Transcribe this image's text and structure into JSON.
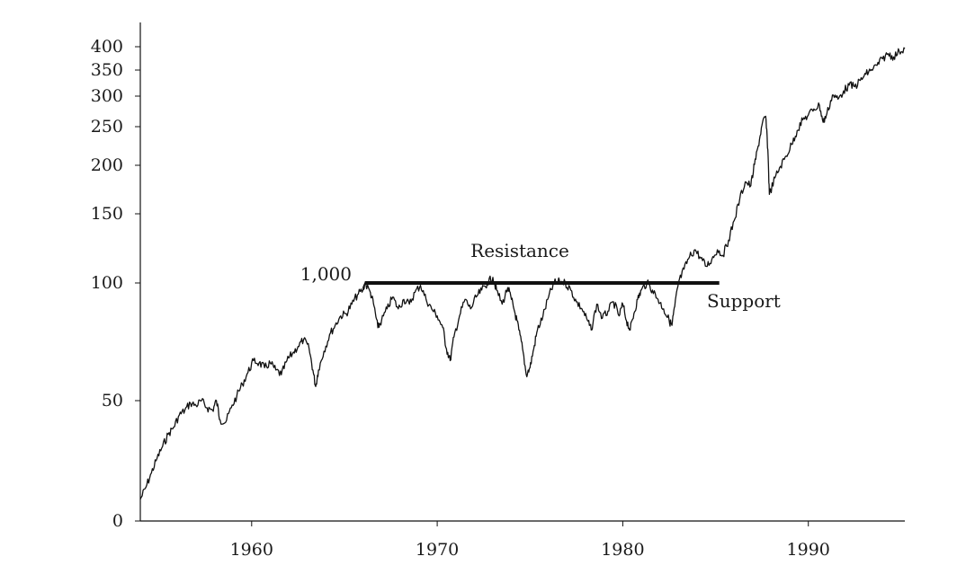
{
  "chart_data": {
    "type": "line",
    "title": "",
    "xlabel": "",
    "ylabel": "",
    "xlim": [
      1954.0,
      1995.2
    ],
    "ylim": [
      0,
      400
    ],
    "y_scale": "custom-compressed (nonlinear; tick labels 0, 50, 100 … 400)",
    "grid": false,
    "legend": "none",
    "x_ticks": [
      1960,
      1970,
      1980,
      1990
    ],
    "y_ticks": [
      0,
      50,
      100,
      150,
      200,
      250,
      300,
      350,
      400
    ],
    "x_tick_labels": [
      "1960",
      "1970",
      "1980",
      "1990"
    ],
    "y_tick_labels": [
      "0",
      "50",
      "100",
      "150",
      "200",
      "250",
      "300",
      "350",
      "400"
    ],
    "line_color": "#111111",
    "series": [
      {
        "points": [
          [
            1954.0,
            9
          ],
          [
            1954.3,
            14
          ],
          [
            1954.6,
            20
          ],
          [
            1954.9,
            26
          ],
          [
            1955.2,
            31
          ],
          [
            1955.5,
            36
          ],
          [
            1955.8,
            39
          ],
          [
            1956.1,
            44
          ],
          [
            1956.4,
            46
          ],
          [
            1956.7,
            49
          ],
          [
            1957.0,
            48
          ],
          [
            1957.3,
            50
          ],
          [
            1957.6,
            47
          ],
          [
            1957.9,
            46
          ],
          [
            1958.1,
            50
          ],
          [
            1958.3,
            42
          ],
          [
            1958.6,
            41
          ],
          [
            1958.9,
            47
          ],
          [
            1959.2,
            52
          ],
          [
            1959.5,
            57
          ],
          [
            1959.8,
            62
          ],
          [
            1960.1,
            67
          ],
          [
            1960.4,
            66
          ],
          [
            1960.7,
            64
          ],
          [
            1961.0,
            66
          ],
          [
            1961.3,
            63
          ],
          [
            1961.6,
            61
          ],
          [
            1961.9,
            67
          ],
          [
            1962.2,
            70
          ],
          [
            1962.5,
            73
          ],
          [
            1962.8,
            76
          ],
          [
            1963.1,
            72
          ],
          [
            1963.3,
            63
          ],
          [
            1963.45,
            56
          ],
          [
            1963.6,
            63
          ],
          [
            1963.9,
            71
          ],
          [
            1964.2,
            78
          ],
          [
            1964.5,
            82
          ],
          [
            1964.8,
            86
          ],
          [
            1965.1,
            87
          ],
          [
            1965.4,
            91
          ],
          [
            1965.7,
            95
          ],
          [
            1966.0,
            97
          ],
          [
            1966.1,
            100
          ],
          [
            1966.4,
            96
          ],
          [
            1966.6,
            90
          ],
          [
            1966.8,
            81
          ],
          [
            1967.0,
            84
          ],
          [
            1967.3,
            89
          ],
          [
            1967.6,
            94
          ],
          [
            1967.9,
            89
          ],
          [
            1968.2,
            93
          ],
          [
            1968.5,
            91
          ],
          [
            1968.8,
            96
          ],
          [
            1969.1,
            99
          ],
          [
            1969.4,
            93
          ],
          [
            1969.7,
            89
          ],
          [
            1970.0,
            86
          ],
          [
            1970.3,
            81
          ],
          [
            1970.5,
            72
          ],
          [
            1970.7,
            67
          ],
          [
            1970.9,
            77
          ],
          [
            1971.2,
            86
          ],
          [
            1971.5,
            93
          ],
          [
            1971.8,
            89
          ],
          [
            1972.1,
            94
          ],
          [
            1972.4,
            97
          ],
          [
            1972.7,
            100
          ],
          [
            1973.0,
            104
          ],
          [
            1973.2,
            97
          ],
          [
            1973.5,
            91
          ],
          [
            1973.8,
            98
          ],
          [
            1974.0,
            93
          ],
          [
            1974.2,
            87
          ],
          [
            1974.4,
            80
          ],
          [
            1974.6,
            72
          ],
          [
            1974.8,
            61
          ],
          [
            1975.0,
            64
          ],
          [
            1975.2,
            72
          ],
          [
            1975.4,
            80
          ],
          [
            1975.7,
            86
          ],
          [
            1976.0,
            94
          ],
          [
            1976.3,
            100
          ],
          [
            1976.6,
            101
          ],
          [
            1976.9,
            100
          ],
          [
            1977.2,
            97
          ],
          [
            1977.5,
            92
          ],
          [
            1977.8,
            89
          ],
          [
            1978.1,
            84
          ],
          [
            1978.3,
            80
          ],
          [
            1978.6,
            91
          ],
          [
            1978.9,
            85
          ],
          [
            1979.2,
            88
          ],
          [
            1979.5,
            92
          ],
          [
            1979.8,
            86
          ],
          [
            1980.0,
            91
          ],
          [
            1980.2,
            84
          ],
          [
            1980.4,
            80
          ],
          [
            1980.6,
            87
          ],
          [
            1980.8,
            93
          ],
          [
            1981.0,
            97
          ],
          [
            1981.3,
            100
          ],
          [
            1981.6,
            97
          ],
          [
            1981.9,
            93
          ],
          [
            1982.2,
            89
          ],
          [
            1982.5,
            84
          ],
          [
            1982.65,
            82
          ],
          [
            1982.8,
            90
          ],
          [
            1983.0,
            100
          ],
          [
            1983.3,
            110
          ],
          [
            1983.6,
            119
          ],
          [
            1983.9,
            124
          ],
          [
            1984.2,
            118
          ],
          [
            1984.5,
            112
          ],
          [
            1984.8,
            117
          ],
          [
            1985.1,
            124
          ],
          [
            1985.4,
            120
          ],
          [
            1985.7,
            131
          ],
          [
            1986.0,
            145
          ],
          [
            1986.3,
            165
          ],
          [
            1986.6,
            183
          ],
          [
            1986.9,
            179
          ],
          [
            1987.1,
            201
          ],
          [
            1987.3,
            225
          ],
          [
            1987.5,
            252
          ],
          [
            1987.7,
            267
          ],
          [
            1987.82,
            220
          ],
          [
            1987.9,
            170
          ],
          [
            1988.2,
            187
          ],
          [
            1988.5,
            199
          ],
          [
            1988.8,
            212
          ],
          [
            1989.1,
            227
          ],
          [
            1989.4,
            245
          ],
          [
            1989.7,
            261
          ],
          [
            1990.0,
            269
          ],
          [
            1990.3,
            279
          ],
          [
            1990.6,
            285
          ],
          [
            1990.8,
            257
          ],
          [
            1991.0,
            271
          ],
          [
            1991.3,
            302
          ],
          [
            1991.6,
            295
          ],
          [
            1991.9,
            310
          ],
          [
            1992.2,
            321
          ],
          [
            1992.5,
            318
          ],
          [
            1992.8,
            330
          ],
          [
            1993.1,
            342
          ],
          [
            1993.4,
            351
          ],
          [
            1993.7,
            360
          ],
          [
            1994.0,
            374
          ],
          [
            1994.3,
            385
          ],
          [
            1994.6,
            378
          ],
          [
            1994.9,
            390
          ],
          [
            1995.2,
            396
          ]
        ]
      }
    ],
    "reference_line": {
      "y": 100,
      "x_start": 1966.1,
      "x_end": 1985.2
    },
    "annotations": {
      "resistance": "Resistance",
      "support": "Support",
      "level": "1,000"
    }
  }
}
